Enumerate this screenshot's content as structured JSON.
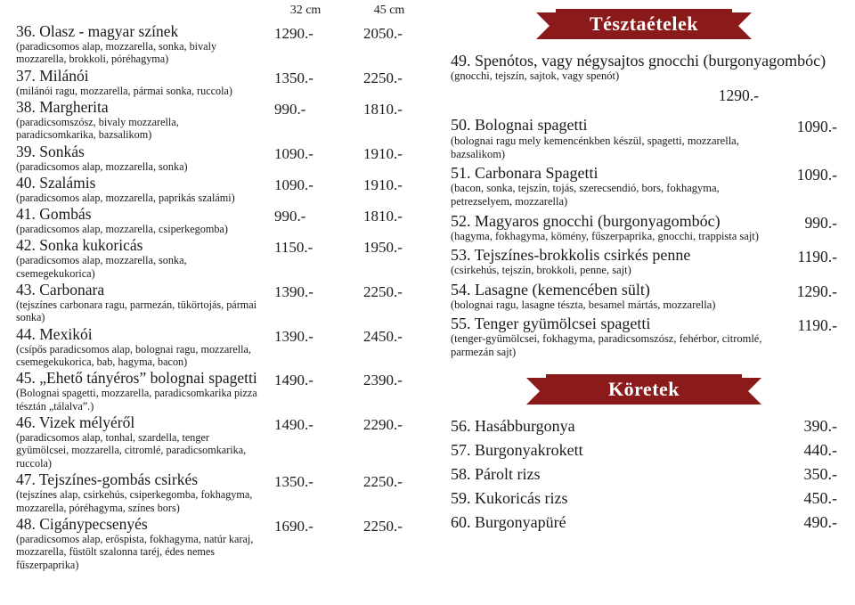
{
  "pizza_headers": {
    "c32": "32 cm",
    "c45": "45 cm"
  },
  "pizzas": [
    {
      "name": "36. Olasz - magyar színek",
      "desc": "(paradicsomos alap, mozzarella, sonka, bivaly mozzarella, brokkoli, póréhagyma)",
      "p32": "1290.-",
      "p45": "2050.-"
    },
    {
      "name": "37. Milánói",
      "desc": "(milánói ragu, mozzarella, pármai sonka, ruccola)",
      "p32": "1350.-",
      "p45": "2250.-"
    },
    {
      "name": "38. Margherita",
      "desc": "(paradicsomszósz, bivaly mozzarella, paradicsomkarika, bazsalikom)",
      "p32": "990.-",
      "p45": "1810.-"
    },
    {
      "name": "39. Sonkás",
      "desc": "(paradicsomos alap, mozzarella, sonka)",
      "p32": "1090.-",
      "p45": "1910.-"
    },
    {
      "name": "40. Szalámis",
      "desc": "(paradicsomos alap, mozzarella, paprikás szalámi)",
      "p32": "1090.-",
      "p45": "1910.-"
    },
    {
      "name": "41. Gombás",
      "desc": "(paradicsomos alap, mozzarella, csiperkegomba)",
      "p32": "990.-",
      "p45": "1810.-"
    },
    {
      "name": "42. Sonka kukoricás",
      "desc": "(paradicsomos alap, mozzarella, sonka, csemegekukorica)",
      "p32": "1150.-",
      "p45": "1950.-"
    },
    {
      "name": "43. Carbonara",
      "desc": "(tejszínes carbonara ragu, parmezán, tükörtojás, pármai sonka)",
      "p32": "1390.-",
      "p45": "2250.-"
    },
    {
      "name": "44. Mexikói",
      "desc": "(csípős paradicsomos alap, bolognai ragu, mozzarella, csemegekukorica, bab, hagyma, bacon)",
      "p32": "1390.-",
      "p45": "2450.-"
    },
    {
      "name": "45. „Ehető tányéros” bolognai spagetti",
      "desc": "(Bolognai spagetti, mozzarella, paradicsomkarika pizza tésztán „tálalva”.)",
      "p32": "1490.-",
      "p45": "2390.-"
    },
    {
      "name": "46. Vizek mélyéről",
      "desc": "(paradicsomos alap, tonhal, szardella, tenger gyümölcsei, mozzarella, citromlé, paradicsomkarika, ruccola)",
      "p32": "1490.-",
      "p45": "2290.-"
    },
    {
      "name": "47. Tejszínes-gombás csirkés",
      "desc": "(tejszínes alap, csirkehús, csiperkegomba, fokhagyma, mozzarella, póréhagyma, színes bors)",
      "p32": "1350.-",
      "p45": "2250.-"
    },
    {
      "name": "48. Cigánypecsenyés",
      "desc": "(paradicsomos alap, erőspista, fokhagyma, natúr karaj, mozzarella, füstölt szalonna taréj, édes nemes fűszerpaprika)",
      "p32": "1690.-",
      "p45": "2250.-"
    }
  ],
  "section_pasta_title": "Tésztaételek",
  "pasta_lead": {
    "name": "49. Spenótos, vagy négysajtos gnocchi (burgonyagombóc)",
    "desc": "(gnocchi, tejszín, sajtok, vagy spenót)",
    "price": "1290.-"
  },
  "pastas": [
    {
      "name": "50. Bolognai spagetti",
      "desc": "(bolognai ragu mely kemencénkben készül, spagetti, mozzarella, bazsalikom)",
      "price": "1090.-"
    },
    {
      "name": "51. Carbonara Spagetti",
      "desc": "(bacon, sonka, tejszín, tojás, szerecsendió, bors, fokhagyma, petrezselyem, mozzarella)",
      "price": "1090.-"
    },
    {
      "name": "52. Magyaros gnocchi (burgonyagombóc)",
      "desc": "(hagyma, fokhagyma, kömény, fűszerpaprika, gnocchi, trappista sajt)",
      "price": "990.-"
    },
    {
      "name": "53. Tejszínes-brokkolis csirkés penne",
      "desc": "(csirkehús, tejszín, brokkoli, penne, sajt)",
      "price": "1190.-"
    },
    {
      "name": "54. Lasagne (kemencében sült)",
      "desc": "(bolognai ragu, lasagne tészta, besamel mártás, mozzarella)",
      "price": "1290.-"
    },
    {
      "name": "55. Tenger gyümölcsei spagetti",
      "desc": "(tenger-gyümölcsei, fokhagyma, paradicsomszósz, fehérbor, citromlé, parmezán sajt)",
      "price": "1190.-"
    }
  ],
  "section_sides_title": "Köretek",
  "sides": [
    {
      "name": "56. Hasábburgonya",
      "price": "390.-"
    },
    {
      "name": "57. Burgonyakrokett",
      "price": "440.-"
    },
    {
      "name": "58. Párolt rizs",
      "price": "350.-"
    },
    {
      "name": "59. Kukoricás rizs",
      "price": "450.-"
    },
    {
      "name": "60. Burgonyapüré",
      "price": "490.-"
    }
  ]
}
